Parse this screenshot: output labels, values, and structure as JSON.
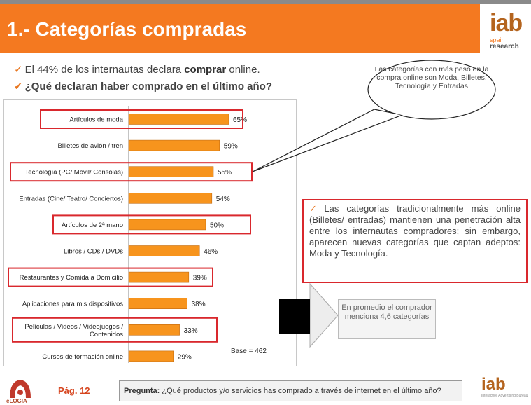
{
  "header": {
    "title": "1.- Categorías compradas",
    "logo_main": "iab",
    "logo_sub1": "spain",
    "logo_sub2": "research"
  },
  "bullets": {
    "tick": "✓",
    "b1_pre": "El 44% de los internautas declara ",
    "b1_bold": "comprar",
    "b1_post": " online.",
    "b2": "¿Qué declaran haber comprado en el último año?"
  },
  "chart_data": {
    "type": "bar",
    "orientation": "horizontal",
    "categories": [
      "Artículos de moda",
      "Billetes de avión / tren",
      "Tecnología (PC/ Móvil/ Consolas)",
      "Entradas (Cine/ Teatro/ Conciertos)",
      "Artículos de 2ª mano",
      "Libros / CDs / DVDs",
      "Restaurantes y Comida a Domicilio",
      "Aplicaciones para mis dispositivos",
      "Películas / Videos / Videojuegos / Contenidos",
      "Cursos de formación online"
    ],
    "values": [
      65,
      59,
      55,
      54,
      50,
      46,
      39,
      38,
      33,
      29
    ],
    "value_labels": [
      "65%",
      "59%",
      "55%",
      "54%",
      "50%",
      "46%",
      "39%",
      "38%",
      "33%",
      "29%"
    ],
    "highlighted": [
      true,
      false,
      true,
      false,
      true,
      false,
      true,
      false,
      true,
      false
    ],
    "xlim": [
      0,
      100
    ],
    "bar_color": "#f7941d",
    "highlight_color": "#d9282d",
    "base_label": "Base = 462"
  },
  "bubble": {
    "text": "Las categorías con más peso en la compra online son Moda, Billetes, Tecnología y Entradas"
  },
  "callout": {
    "tick": "✓",
    "text": "Las categorías tradicionalmente más online (Billetes/ entradas) mantienen una penetración alta entre los internautas compradores; sin embargo, aparecen nuevas categorías que captan adeptos: Moda y Tecnología."
  },
  "average": {
    "text": "En promedio el comprador menciona 4,6 categorías"
  },
  "footer": {
    "logo_text": "eLOGIA",
    "page": "Pág. 12",
    "question_label": "Pregunta:",
    "question_text": " ¿Qué productos y/o servicios has comprado a través de internet en el último año?",
    "iab": "iab",
    "iab_sub": "Interactive Advertising Bureau"
  },
  "colors": {
    "accent": "#f47920",
    "highlight": "#d9282d"
  }
}
